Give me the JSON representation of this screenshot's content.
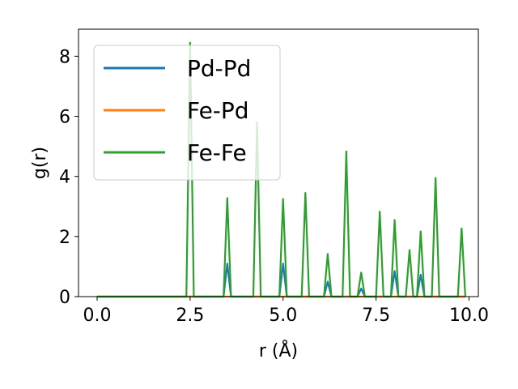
{
  "chart_data": {
    "type": "line",
    "xlabel": "r (Å)",
    "ylabel": "g(r)",
    "xlim": [
      -0.5,
      10.25
    ],
    "ylim": [
      0,
      8.9
    ],
    "xticks": [
      0.0,
      2.5,
      5.0,
      7.5,
      10.0
    ],
    "xtick_labels": [
      "0.0",
      "2.5",
      "5.0",
      "7.5",
      "10.0"
    ],
    "yticks": [
      0,
      2,
      4,
      6,
      8
    ],
    "ytick_labels": [
      "0",
      "2",
      "4",
      "6",
      "8"
    ],
    "grid": false,
    "legend_position": "upper-left",
    "series": [
      {
        "name": "Pd-Pd",
        "color": "#1f77b4",
        "x": [
          0.0,
          2.4,
          2.5,
          2.6,
          3.4,
          3.5,
          3.6,
          4.2,
          4.3,
          4.4,
          4.9,
          5.0,
          5.1,
          5.5,
          5.6,
          5.7,
          6.1,
          6.2,
          6.3,
          6.6,
          6.7,
          6.8,
          7.0,
          7.1,
          7.2,
          7.5,
          7.6,
          7.7,
          7.9,
          8.0,
          8.1,
          8.3,
          8.4,
          8.5,
          8.6,
          8.7,
          8.8,
          9.0,
          9.1,
          9.2,
          9.7,
          9.8,
          9.9
        ],
        "y": [
          0,
          0,
          0,
          0,
          0,
          1.1,
          0,
          0,
          0,
          0,
          0,
          1.1,
          0,
          0,
          0,
          0,
          0,
          0.5,
          0,
          0,
          0,
          0,
          0,
          0.27,
          0,
          0,
          0,
          0,
          0,
          0.85,
          0,
          0,
          0,
          0,
          0,
          0.73,
          0,
          0,
          0,
          0,
          0,
          0,
          0
        ]
      },
      {
        "name": "Fe-Pd",
        "color": "#ff7f0e",
        "x": [
          0.0,
          9.9
        ],
        "y": [
          0,
          0
        ]
      },
      {
        "name": "Fe-Fe",
        "color": "#2ca02c",
        "x": [
          0.0,
          2.4,
          2.5,
          2.6,
          3.4,
          3.5,
          3.6,
          4.2,
          4.3,
          4.4,
          4.9,
          5.0,
          5.1,
          5.5,
          5.6,
          5.7,
          6.1,
          6.2,
          6.3,
          6.6,
          6.7,
          6.8,
          7.0,
          7.1,
          7.2,
          7.5,
          7.6,
          7.7,
          7.9,
          8.0,
          8.1,
          8.3,
          8.4,
          8.5,
          8.6,
          8.7,
          8.8,
          9.0,
          9.1,
          9.2,
          9.7,
          9.8,
          9.9
        ],
        "y": [
          0,
          0,
          8.45,
          0,
          0,
          3.28,
          0,
          0,
          5.8,
          0,
          0,
          3.25,
          0,
          0,
          3.45,
          0,
          0,
          1.42,
          0,
          0,
          4.83,
          0,
          0,
          0.8,
          0,
          0,
          2.83,
          0,
          0,
          2.55,
          0,
          0,
          1.55,
          0,
          0,
          2.17,
          0,
          0,
          3.95,
          0,
          0,
          2.27,
          0
        ]
      }
    ]
  }
}
